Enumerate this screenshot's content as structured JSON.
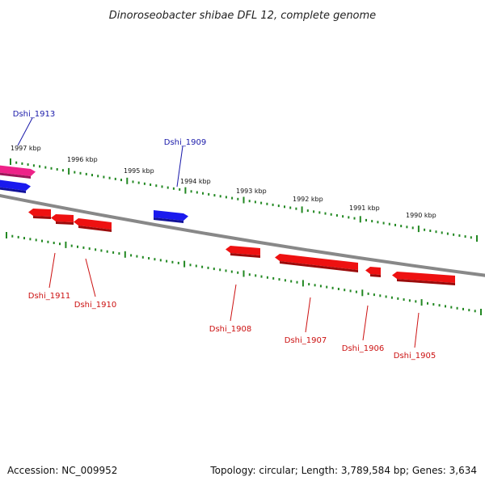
{
  "title": "Dinoroseobacter shibae DFL 12, complete genome",
  "footer": {
    "accession": "Accession: NC_009952",
    "summary": "Topology: circular; Length: 3,789,584 bp; Genes: 3,634"
  },
  "colors": {
    "forward_gene": "#1a1aee",
    "reverse_gene": "#ee1111",
    "highlight_gene": "#ee2288",
    "backbone": "#888888",
    "ticks": "#228822",
    "forward_label": "#1a1aaa",
    "reverse_label": "#cc1111"
  },
  "scale": {
    "ticks": [
      {
        "kbp": 1997,
        "label": "1997 kbp"
      },
      {
        "kbp": 1996,
        "label": "1996 kbp"
      },
      {
        "kbp": 1995,
        "label": "1995 kbp"
      },
      {
        "kbp": 1994,
        "label": "1994 kbp"
      },
      {
        "kbp": 1993,
        "label": "1993 kbp"
      },
      {
        "kbp": 1992,
        "label": "1992 kbp"
      },
      {
        "kbp": 1991,
        "label": "1991 kbp"
      },
      {
        "kbp": 1990,
        "label": "1990 kbp"
      }
    ]
  },
  "genes": [
    {
      "id": "g1913",
      "label": "Dshi_1913",
      "strand": "forward",
      "highlight": true
    },
    {
      "id": "gfwd2",
      "label": "",
      "strand": "forward",
      "highlight": false
    },
    {
      "id": "g1909",
      "label": "Dshi_1909",
      "strand": "forward",
      "highlight": false
    },
    {
      "id": "gr1",
      "label": "",
      "strand": "reverse",
      "highlight": false
    },
    {
      "id": "g1911",
      "label": "Dshi_1911",
      "strand": "reverse",
      "highlight": false
    },
    {
      "id": "g1910",
      "label": "Dshi_1910",
      "strand": "reverse",
      "highlight": false
    },
    {
      "id": "g1908",
      "label": "Dshi_1908",
      "strand": "reverse",
      "highlight": false
    },
    {
      "id": "g1907",
      "label": "Dshi_1907",
      "strand": "reverse",
      "highlight": false
    },
    {
      "id": "g1906",
      "label": "Dshi_1906",
      "strand": "reverse",
      "highlight": false
    },
    {
      "id": "g1905",
      "label": "Dshi_1905",
      "strand": "reverse",
      "highlight": false
    }
  ]
}
